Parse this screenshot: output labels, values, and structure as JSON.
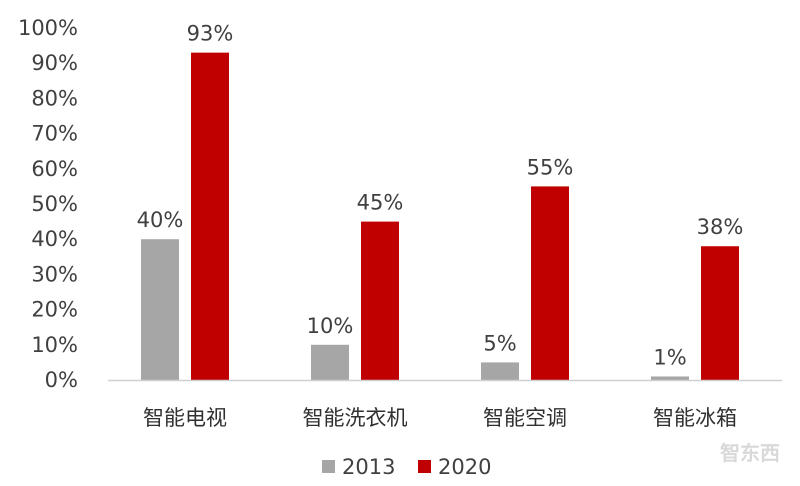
{
  "chart_data": {
    "type": "bar",
    "title": "",
    "xlabel": "",
    "ylabel": "",
    "categories": [
      "智能电视",
      "智能洗衣机",
      "智能空调",
      "智能冰箱"
    ],
    "series": [
      {
        "name": "2013",
        "values": [
          40,
          10,
          5,
          1
        ],
        "color": "#a6a6a6"
      },
      {
        "name": "2020",
        "values": [
          93,
          45,
          55,
          38
        ],
        "color": "#c00000"
      }
    ],
    "ylim": [
      0,
      100
    ],
    "yticks": [
      0,
      10,
      20,
      30,
      40,
      50,
      60,
      70,
      80,
      90,
      100
    ],
    "ytick_suffix": "%",
    "data_label_suffix": "%",
    "grid": false,
    "legend_position": "bottom"
  },
  "watermark": {
    "text": "智东西"
  }
}
